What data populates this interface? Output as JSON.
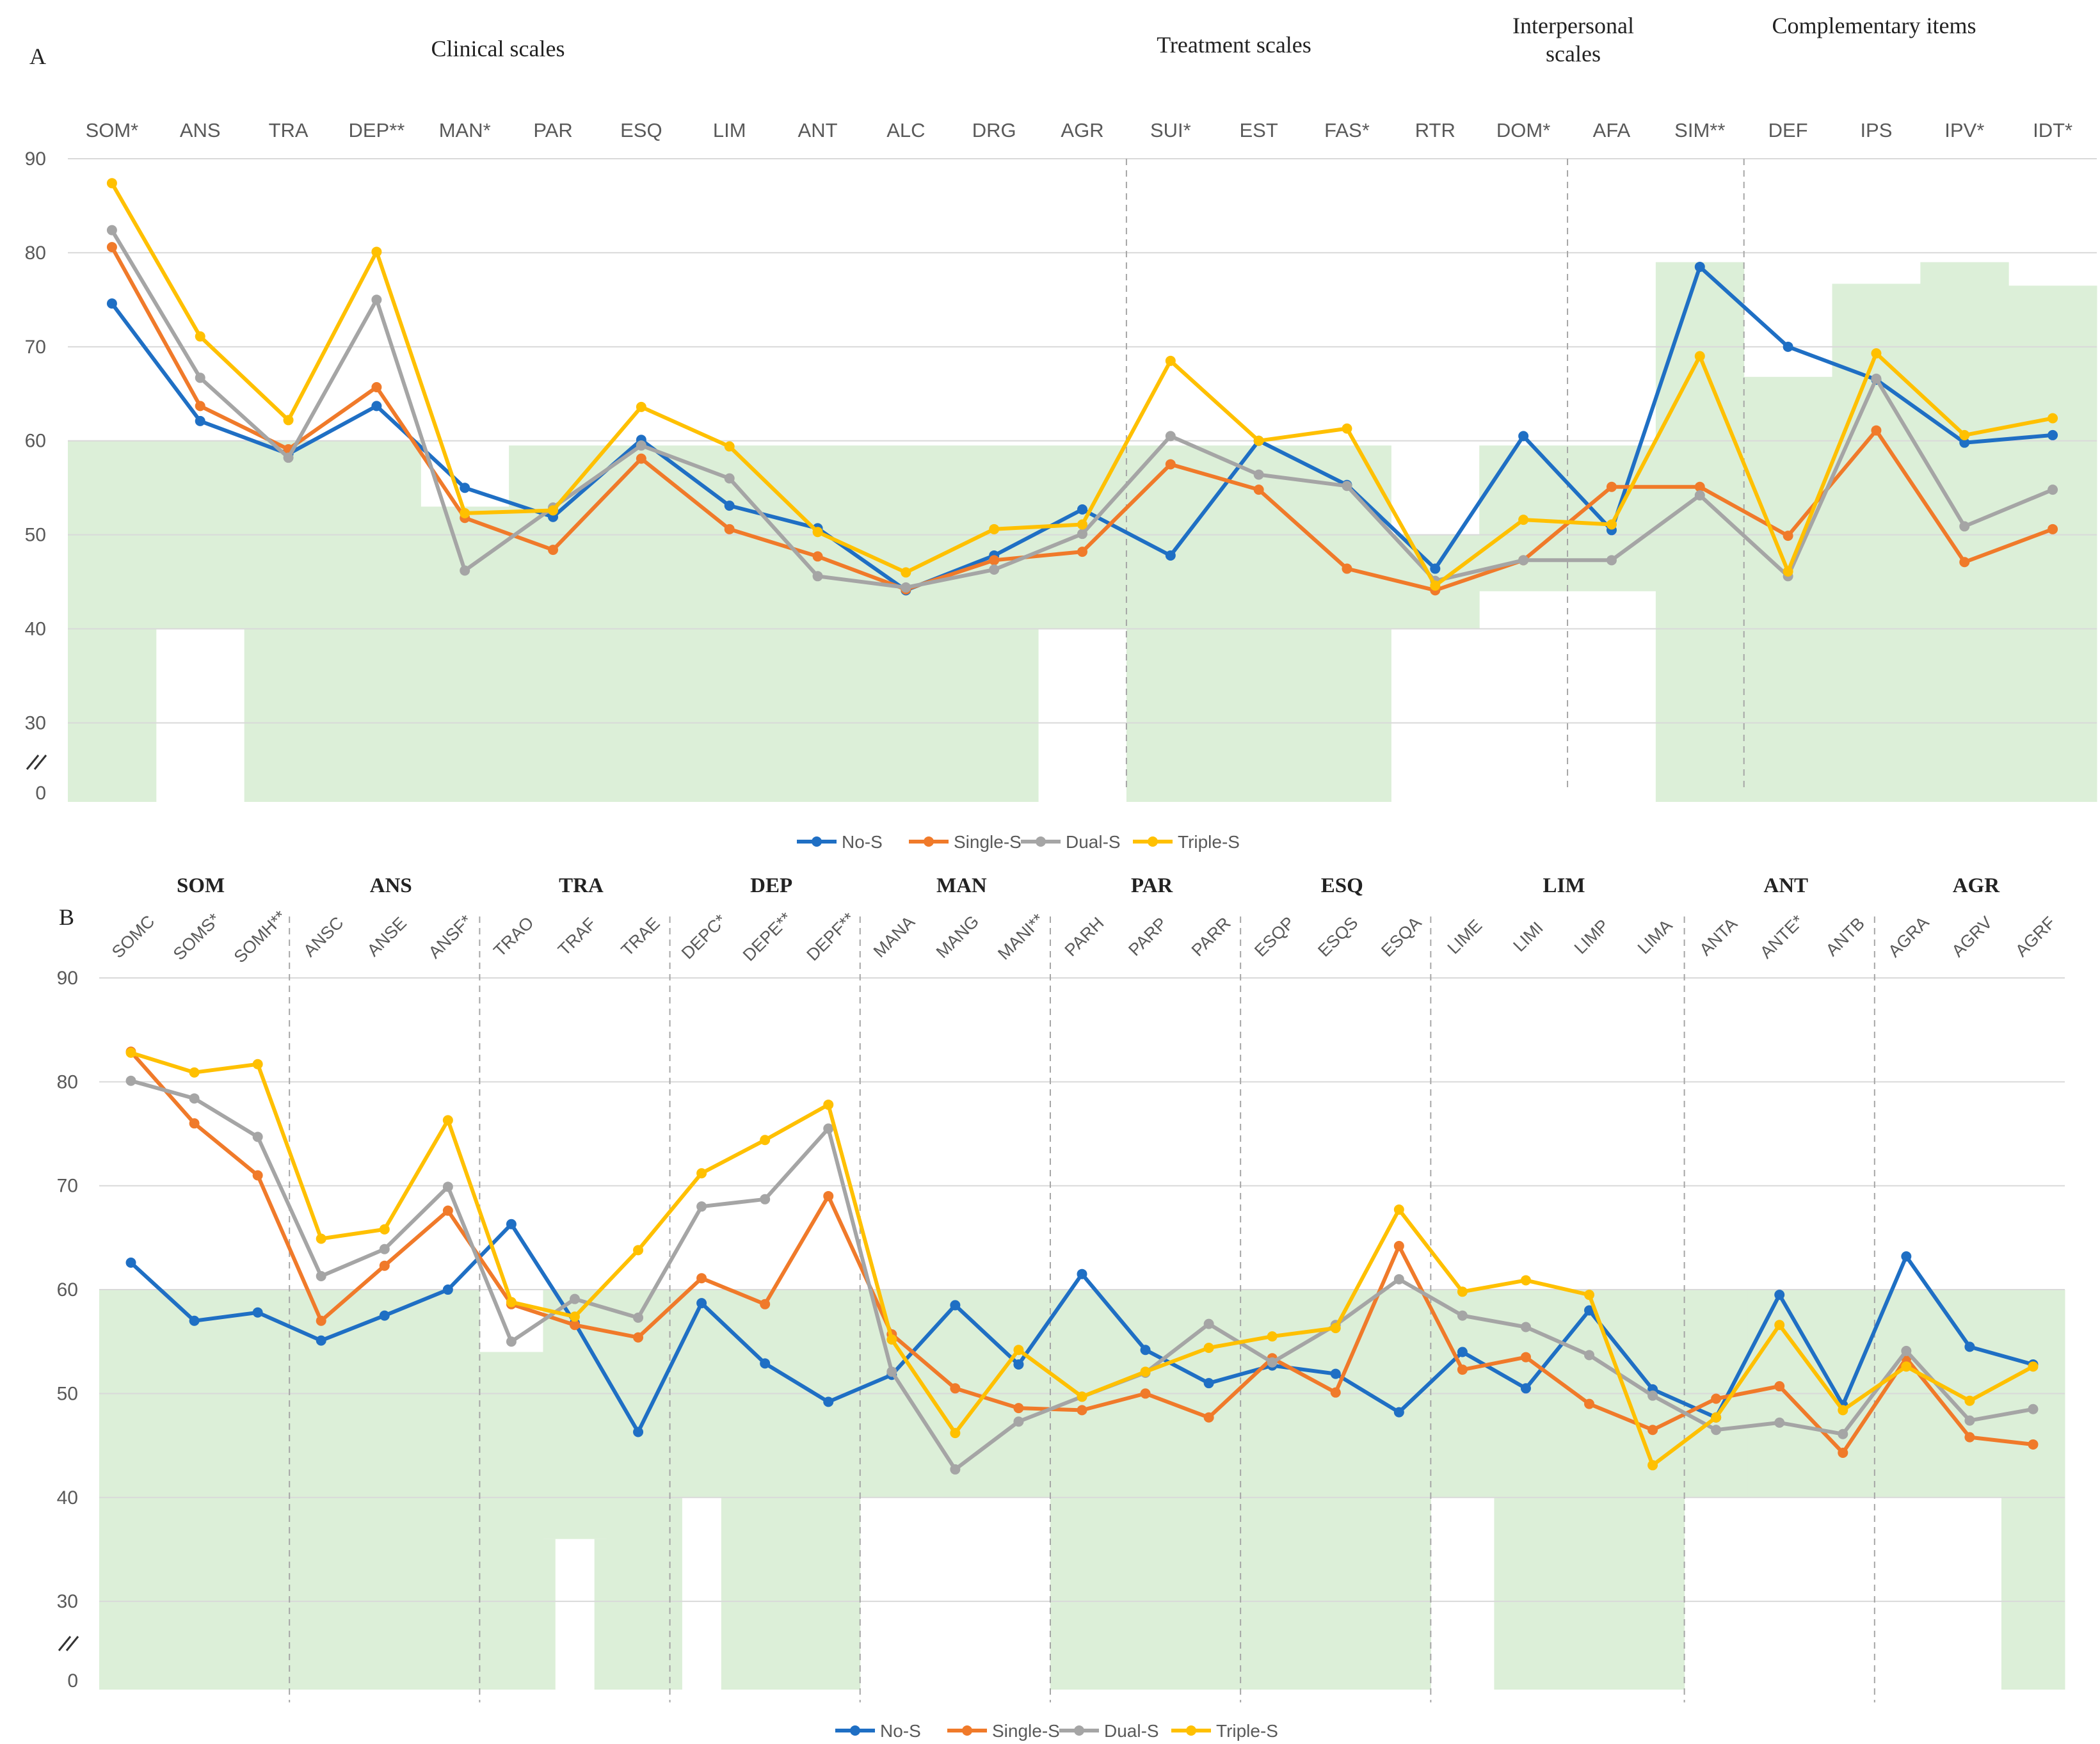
{
  "colors": {
    "band": "#dcefd8",
    "grid": "#d9d9d9",
    "divider": "#a6a6a6",
    "text": "#595959",
    "No-S": "#1f6fc4",
    "Single-S": "#f07a2a",
    "Dual-S": "#a5a5a5",
    "Triple-S": "#ffc000"
  },
  "chart_data": [
    {
      "type": "line",
      "panel_label": "A",
      "group_headers": [
        "Clinical scales",
        "Treatment scales",
        "Interpersonal scales",
        "Complementary items"
      ],
      "categories": [
        "SOM*",
        "ANS",
        "TRA",
        "DEP**",
        "MAN*",
        "PAR",
        "ESQ",
        "LIM",
        "ANT",
        "ALC",
        "DRG",
        "AGR",
        "SUI*",
        "EST",
        "FAS*",
        "RTR",
        "DOM*",
        "AFA",
        "SIM**",
        "DEF",
        "IPS",
        "IPV*",
        "IDT*"
      ],
      "y_ticks": [
        "0",
        "30",
        "40",
        "50",
        "60",
        "70",
        "80",
        "90"
      ],
      "ylim": [
        22,
        90
      ],
      "axis_break": "0 shown below a break at about 22",
      "reference_bands": [
        {
          "low": 22,
          "high": 60
        },
        {
          "low": 40,
          "high": 60
        },
        {
          "low": 22,
          "high": 60
        },
        {
          "low": 22,
          "high": 60
        },
        {
          "low": 22,
          "high": 53
        },
        {
          "low": 22,
          "high": 59.5
        },
        {
          "low": 22,
          "high": 59.5
        },
        {
          "low": 22,
          "high": 59.5
        },
        {
          "low": 22,
          "high": 59.5
        },
        {
          "low": 22,
          "high": 59.5
        },
        {
          "low": 22,
          "high": 59.5
        },
        {
          "low": 40,
          "high": 59.5
        },
        {
          "low": 22,
          "high": 59.5
        },
        {
          "low": 22,
          "high": 59.5
        },
        {
          "low": 22,
          "high": 59.5
        },
        {
          "low": 40,
          "high": 50
        },
        {
          "low": 44,
          "high": 59.5
        },
        {
          "low": 44,
          "high": 59.5
        },
        {
          "low": 22,
          "high": 79
        },
        {
          "low": 22,
          "high": 66.8
        },
        {
          "low": 22,
          "high": 76.7
        },
        {
          "low": 22,
          "high": 79
        },
        {
          "low": 22,
          "high": 76.5
        }
      ],
      "dividers_after": [
        11,
        16,
        18
      ],
      "series": [
        {
          "name": "No-S",
          "values": [
            74.6,
            62.1,
            58.6,
            63.7,
            55.0,
            51.9,
            60.1,
            53.1,
            50.7,
            44.1,
            47.8,
            52.7,
            47.8,
            60.0,
            55.3,
            46.4,
            60.5,
            50.5,
            78.5,
            70.0,
            66.5,
            59.8,
            60.6
          ]
        },
        {
          "name": "Single-S",
          "values": [
            80.6,
            63.7,
            59.1,
            65.7,
            51.8,
            48.4,
            58.1,
            50.6,
            47.7,
            44.2,
            47.3,
            48.2,
            57.5,
            54.8,
            46.4,
            44.1,
            47.3,
            55.1,
            55.1,
            49.9,
            61.1,
            47.1,
            50.6
          ]
        },
        {
          "name": "Dual-S",
          "values": [
            82.4,
            66.7,
            58.2,
            75.0,
            46.2,
            52.9,
            59.5,
            56.0,
            45.6,
            44.4,
            46.3,
            50.1,
            60.5,
            56.4,
            55.2,
            45.1,
            47.3,
            47.3,
            54.2,
            45.6,
            66.6,
            50.9,
            54.8
          ]
        },
        {
          "name": "Triple-S",
          "values": [
            87.4,
            71.1,
            62.2,
            80.1,
            52.3,
            52.6,
            63.6,
            59.4,
            50.3,
            46.0,
            50.6,
            51.1,
            68.5,
            60.0,
            61.3,
            44.6,
            51.6,
            51.1,
            69.0,
            46.1,
            69.3,
            60.6,
            62.4
          ]
        }
      ],
      "legend": [
        "No-S",
        "Single-S",
        "Dual-S",
        "Triple-S"
      ]
    },
    {
      "type": "line",
      "panel_label": "B",
      "group_headers": [
        "SOM",
        "ANS",
        "TRA",
        "DEP",
        "MAN",
        "PAR",
        "ESQ",
        "LIM",
        "ANT",
        "AGR"
      ],
      "categories": [
        "SOMC",
        "SOMS*",
        "SOMH**",
        "ANSC",
        "ANSE",
        "ANSF*",
        "TRAO",
        "TRAF",
        "TRAE",
        "DEPC*",
        "DEPE**",
        "DEPF**",
        "MANA",
        "MANG",
        "MANI**",
        "PARH",
        "PARP",
        "PARR",
        "ESQP",
        "ESQS",
        "ESQA",
        "LIME",
        "LIMI",
        "LIMP",
        "LIMA",
        "ANTA",
        "ANTE*",
        "ANTB",
        "AGRA",
        "AGRV",
        "AGRF"
      ],
      "y_ticks": [
        "0",
        "30",
        "40",
        "50",
        "60",
        "70",
        "80",
        "90"
      ],
      "ylim": [
        22,
        90
      ],
      "axis_break": "0 shown below a break at about 22",
      "reference_bands": [
        {
          "low": 22,
          "high": 60
        },
        {
          "low": 22,
          "high": 60
        },
        {
          "low": 22,
          "high": 60
        },
        {
          "low": 22,
          "high": 60
        },
        {
          "low": 22,
          "high": 60
        },
        {
          "low": 22,
          "high": 60
        },
        {
          "low": 22,
          "high": 54
        },
        {
          "low": 22,
          "high": 60,
          "gap": [
            22,
            36
          ]
        },
        {
          "low": 22,
          "high": 60
        },
        {
          "low": 22,
          "high": 60,
          "gap": [
            22,
            40
          ]
        },
        {
          "low": 22,
          "high": 60
        },
        {
          "low": 22,
          "high": 60
        },
        {
          "low": 40,
          "high": 60
        },
        {
          "low": 40,
          "high": 60
        },
        {
          "low": 40,
          "high": 60
        },
        {
          "low": 22,
          "high": 60
        },
        {
          "low": 22,
          "high": 60
        },
        {
          "low": 22,
          "high": 60
        },
        {
          "low": 22,
          "high": 60
        },
        {
          "low": 22,
          "high": 60
        },
        {
          "low": 22,
          "high": 60
        },
        {
          "low": 40,
          "high": 60
        },
        {
          "low": 22,
          "high": 60
        },
        {
          "low": 22,
          "high": 60
        },
        {
          "low": 22,
          "high": 60
        },
        {
          "low": 40,
          "high": 60
        },
        {
          "low": 40,
          "high": 60
        },
        {
          "low": 40,
          "high": 60
        },
        {
          "low": 40,
          "high": 60
        },
        {
          "low": 40,
          "high": 60
        },
        {
          "low": 22,
          "high": 60
        }
      ],
      "dividers_after": [
        2,
        5,
        8,
        11,
        14,
        17,
        20,
        24,
        27
      ],
      "series": [
        {
          "name": "No-S",
          "values": [
            62.6,
            57.0,
            57.8,
            55.1,
            57.5,
            60.0,
            66.3,
            56.8,
            46.3,
            58.7,
            52.9,
            49.2,
            51.8,
            58.5,
            52.8,
            61.5,
            54.2,
            51.0,
            52.7,
            51.9,
            48.2,
            54.0,
            50.5,
            58.0,
            50.4,
            47.7,
            59.5,
            48.9,
            63.2,
            54.5,
            52.8
          ]
        },
        {
          "name": "Single-S",
          "values": [
            82.9,
            76.0,
            71.0,
            57.0,
            62.3,
            67.6,
            58.6,
            56.6,
            55.4,
            61.1,
            58.6,
            69.0,
            55.7,
            50.5,
            48.6,
            48.4,
            50.0,
            47.7,
            53.4,
            50.1,
            64.2,
            52.3,
            53.5,
            49.0,
            46.5,
            49.5,
            50.7,
            44.3,
            53.4,
            45.8,
            45.1
          ]
        },
        {
          "name": "Dual-S",
          "values": [
            80.1,
            78.4,
            74.7,
            61.3,
            63.9,
            69.9,
            55.0,
            59.1,
            57.3,
            68.0,
            68.7,
            75.5,
            52.1,
            42.7,
            47.3,
            49.7,
            52.0,
            56.7,
            53.0,
            56.6,
            61.0,
            57.5,
            56.4,
            53.7,
            49.8,
            46.5,
            47.2,
            46.1,
            54.1,
            47.4,
            48.5
          ]
        },
        {
          "name": "Triple-S",
          "values": [
            82.8,
            80.9,
            81.7,
            64.9,
            65.8,
            76.3,
            58.8,
            57.4,
            63.8,
            71.2,
            74.4,
            77.8,
            55.2,
            46.2,
            54.2,
            49.7,
            52.1,
            54.4,
            55.5,
            56.3,
            67.7,
            59.8,
            60.9,
            59.5,
            43.1,
            47.7,
            56.6,
            48.4,
            52.6,
            49.3,
            52.6
          ]
        }
      ],
      "legend": [
        "No-S",
        "Single-S",
        "Dual-S",
        "Triple-S"
      ]
    }
  ]
}
